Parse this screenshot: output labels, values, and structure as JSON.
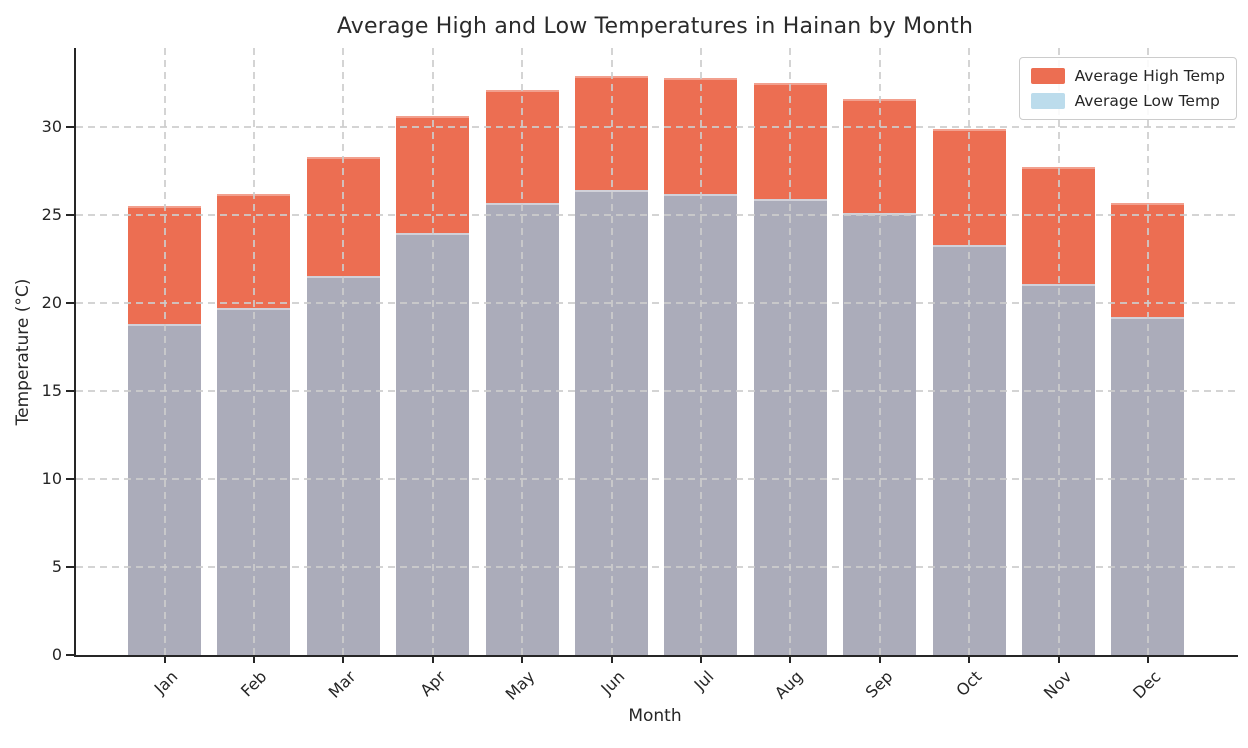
{
  "chart_data": {
    "type": "bar",
    "title": "Average High and Low Temperatures in Hainan by Month",
    "xlabel": "Month",
    "ylabel": "Temperature (°C)",
    "categories": [
      "Jan",
      "Feb",
      "Mar",
      "Apr",
      "May",
      "Jun",
      "Jul",
      "Aug",
      "Sep",
      "Oct",
      "Nov",
      "Dec"
    ],
    "series": [
      {
        "name": "Average High Temp",
        "values": [
          25.4,
          26.1,
          28.2,
          30.5,
          32.0,
          32.8,
          32.7,
          32.4,
          31.5,
          29.8,
          27.6,
          25.6
        ]
      },
      {
        "name": "Average Low Temp",
        "values": [
          18.7,
          19.6,
          21.4,
          23.9,
          25.6,
          26.3,
          26.1,
          25.8,
          25.0,
          23.2,
          21.0,
          19.1
        ]
      }
    ],
    "yticks": [
      0,
      5,
      10,
      15,
      20,
      25,
      30
    ],
    "ylim": [
      0,
      34.5
    ],
    "grid": "dashed gridlines on both axes, drawn over bars",
    "legend_position": "upper right",
    "bar_mode": "overlaid (low bars drawn in front of high bars from baseline 0)"
  },
  "colors": {
    "high_bar": "#EC6E52",
    "low_bar_rendered": "#ABACBA",
    "low_legend_swatch": "#BCDCEC",
    "grid": "#CDCDCD",
    "axis": "#262626",
    "text": "#262626",
    "background": "#FFFFFF"
  },
  "legend": {
    "items": [
      {
        "label": "Average High Temp"
      },
      {
        "label": "Average Low Temp"
      }
    ]
  }
}
